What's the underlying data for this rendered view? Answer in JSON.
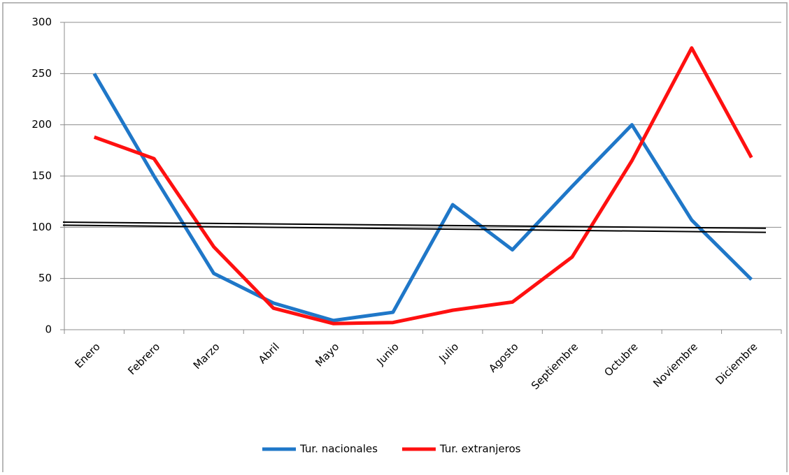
{
  "chart_data": {
    "type": "line",
    "categories": [
      "Enero",
      "Febrero",
      "Marzo",
      "Abril",
      "Mayo",
      "Junio",
      "Julio",
      "Agosto",
      "Septiembre",
      "Octubre",
      "Noviembre",
      "Diciembre"
    ],
    "series": [
      {
        "name": "Tur. nacionales",
        "color": "#1f77c8",
        "values": [
          250,
          150,
          55,
          26,
          9,
          17,
          122,
          78,
          140,
          200,
          107,
          49
        ]
      },
      {
        "name": "Tur. extranjeros",
        "color": "#ff1010",
        "values": [
          188,
          167,
          81,
          21,
          6,
          7,
          19,
          27,
          71,
          165,
          275,
          168
        ]
      }
    ],
    "trendlines": [
      {
        "color": "#000000",
        "values": [
          105,
          99
        ]
      },
      {
        "color": "#000000",
        "values": [
          102,
          95
        ]
      }
    ],
    "ylim": [
      0,
      300
    ],
    "yticks": [
      0,
      50,
      100,
      150,
      200,
      250,
      300
    ],
    "grid": true,
    "legend": "bottom"
  }
}
